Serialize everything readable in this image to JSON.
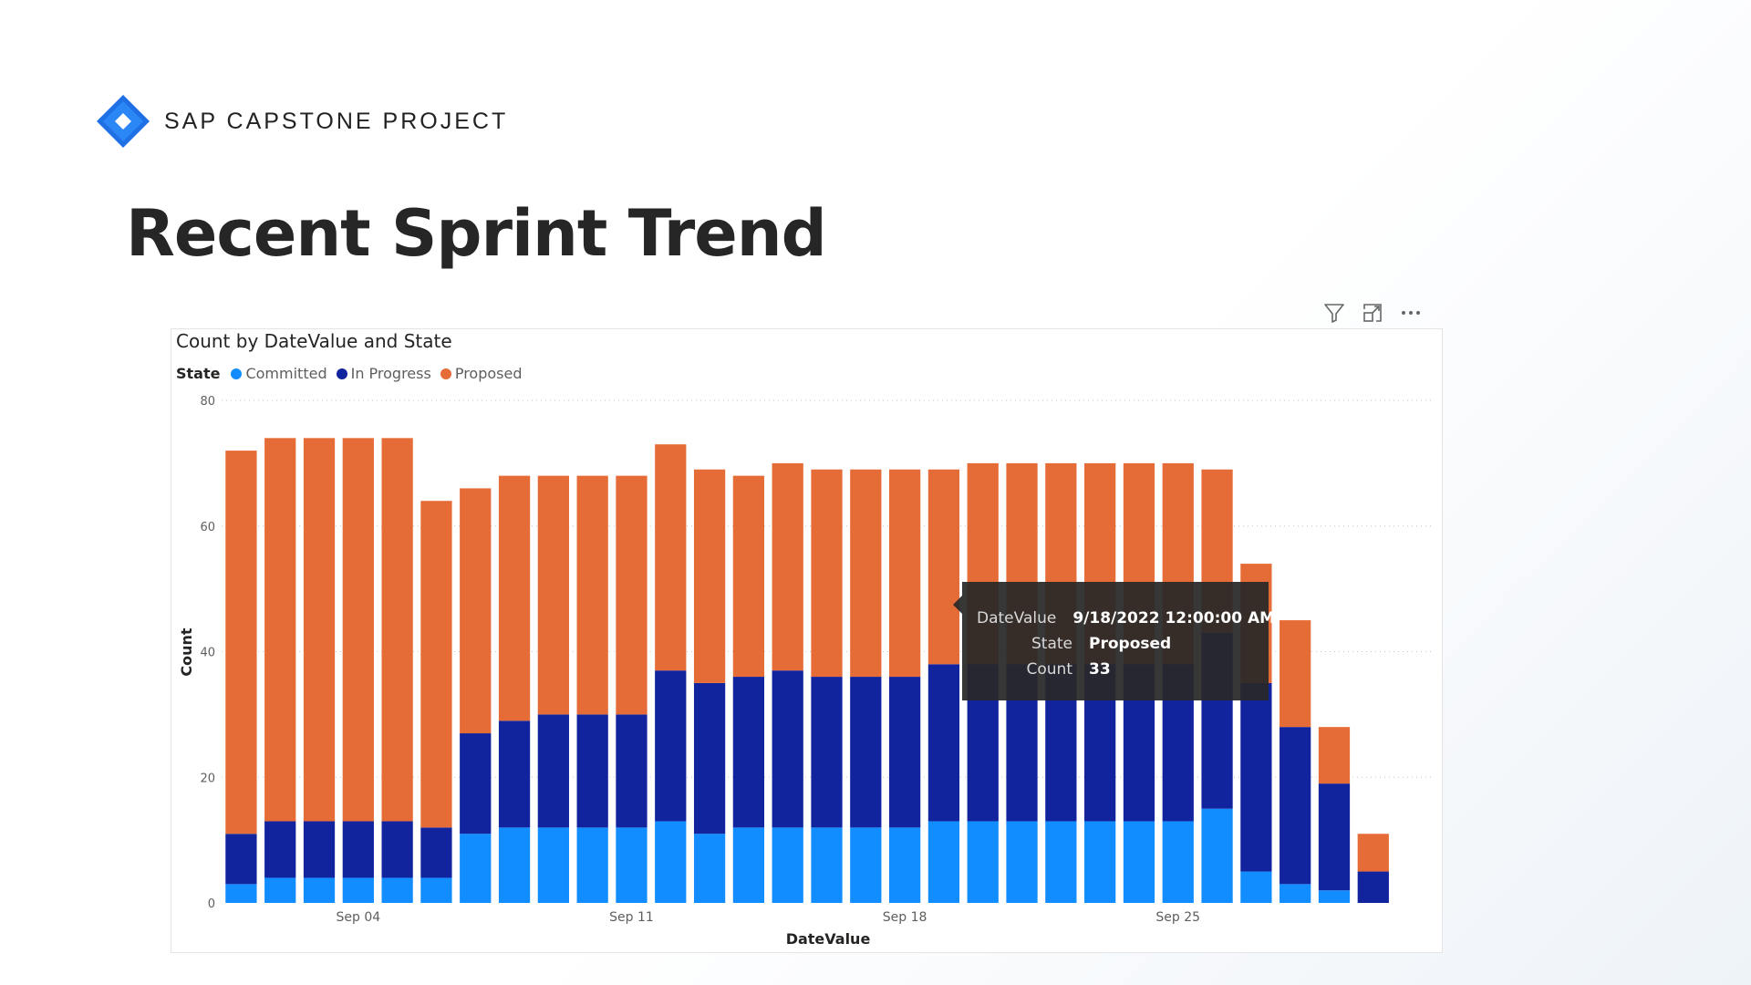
{
  "header": {
    "brand_name": "SAP CAPSTONE PROJECT",
    "brand_icon": "jira-diamond-icon",
    "title": "Recent Sprint Trend"
  },
  "toolbar": {
    "icons": [
      "filter-icon",
      "focus-mode-icon",
      "more-options-icon"
    ]
  },
  "colors": {
    "Committed": "#118DFF",
    "In Progress": "#12239E",
    "Proposed": "#E66C37"
  },
  "chart_data": {
    "type": "bar",
    "stacked": true,
    "title": "Count by DateValue and State",
    "xlabel": "DateValue",
    "ylabel": "Count",
    "ylim": [
      0,
      80
    ],
    "yticks": [
      0,
      20,
      40,
      60,
      80
    ],
    "grid": true,
    "legend": {
      "title": "State",
      "position": "top-left"
    },
    "categories": [
      "2022-09-01",
      "2022-09-02",
      "2022-09-03",
      "2022-09-04",
      "2022-09-05",
      "2022-09-06",
      "2022-09-07",
      "2022-09-08",
      "2022-09-09",
      "2022-09-10",
      "2022-09-11",
      "2022-09-12",
      "2022-09-13",
      "2022-09-14",
      "2022-09-15",
      "2022-09-16",
      "2022-09-17",
      "2022-09-18",
      "2022-09-19",
      "2022-09-20",
      "2022-09-21",
      "2022-09-22",
      "2022-09-23",
      "2022-09-24",
      "2022-09-25",
      "2022-09-26",
      "2022-09-27",
      "2022-09-28",
      "2022-09-29",
      "2022-09-30",
      "2022-10-01"
    ],
    "xtick_labels": [
      {
        "index": 3,
        "label": "Sep 04"
      },
      {
        "index": 10,
        "label": "Sep 11"
      },
      {
        "index": 17,
        "label": "Sep 18"
      },
      {
        "index": 24,
        "label": "Sep 25"
      }
    ],
    "series": [
      {
        "name": "Committed",
        "values": [
          3,
          4,
          4,
          4,
          4,
          4,
          11,
          12,
          12,
          12,
          12,
          13,
          11,
          12,
          12,
          12,
          12,
          12,
          13,
          13,
          13,
          13,
          13,
          13,
          13,
          15,
          5,
          3,
          2,
          0,
          0
        ]
      },
      {
        "name": "In Progress",
        "values": [
          8,
          9,
          9,
          9,
          9,
          8,
          16,
          17,
          18,
          18,
          18,
          24,
          24,
          24,
          25,
          24,
          24,
          24,
          25,
          25,
          25,
          25,
          25,
          25,
          25,
          28,
          30,
          25,
          17,
          5,
          0
        ]
      },
      {
        "name": "Proposed",
        "values": [
          61,
          61,
          61,
          61,
          61,
          52,
          39,
          39,
          38,
          38,
          38,
          36,
          34,
          32,
          33,
          33,
          33,
          33,
          31,
          32,
          32,
          32,
          32,
          32,
          32,
          26,
          19,
          17,
          9,
          6,
          0
        ]
      }
    ],
    "tooltip": {
      "rows": [
        {
          "label": "DateValue",
          "value": "9/18/2022 12:00:00 AM"
        },
        {
          "label": "State",
          "value": "Proposed"
        },
        {
          "label": "Count",
          "value": "33"
        }
      ]
    }
  }
}
